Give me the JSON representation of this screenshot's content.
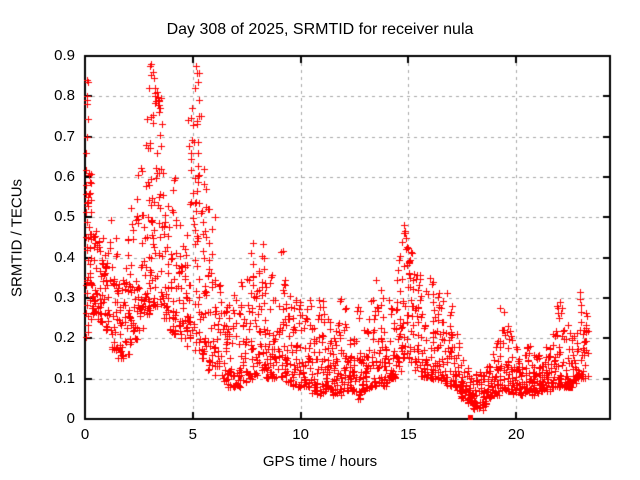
{
  "figure": {
    "background": "#ffffff"
  },
  "chart_data": {
    "type": "scatter",
    "title": "Day 308 of 2025, SRMTID for receiver nula",
    "xlabel": "GPS time / hours",
    "ylabel": "SRMTID / TECUs",
    "xlim": [
      0,
      24.35
    ],
    "ylim": [
      0,
      0.9
    ],
    "xticks": [
      0,
      5,
      10,
      15,
      20
    ],
    "xtick_labels": [
      "0",
      "5",
      "10",
      "15",
      "20"
    ],
    "yticks": [
      0,
      0.1,
      0.2,
      0.3,
      0.4,
      0.5,
      0.6,
      0.7,
      0.8,
      0.9
    ],
    "ytick_labels": [
      "0",
      "0.1",
      "0.2",
      "0.3",
      "0.4",
      "0.5",
      "0.6",
      "0.7",
      "0.8",
      "0.9"
    ],
    "grid": true,
    "legend": "none",
    "marker": "plus",
    "colors": {
      "points": "#ff0000",
      "grid": "#a8a8a8",
      "axis": "#000000",
      "text": "#000000"
    },
    "series": [
      {
        "name": "SRMTID",
        "marker": "plus"
      }
    ],
    "random_seed": 308,
    "low_point_square": {
      "x": 17.85,
      "y": 0.004,
      "marker": "filled-square"
    },
    "outlier_points": [
      [
        0.08,
        0.84
      ],
      [
        0.13,
        0.835
      ],
      [
        0.07,
        0.8
      ],
      [
        0.11,
        0.79
      ],
      [
        0.1,
        0.78
      ],
      [
        0.14,
        0.745
      ],
      [
        0.09,
        0.7
      ],
      [
        0.06,
        0.66
      ],
      [
        0.05,
        0.58
      ],
      [
        0.16,
        0.55
      ],
      [
        2.95,
        0.82
      ],
      [
        3.03,
        0.875
      ],
      [
        3.08,
        0.88
      ],
      [
        3.14,
        0.86
      ],
      [
        3.2,
        0.845
      ],
      [
        3.26,
        0.82
      ],
      [
        3.34,
        0.81
      ],
      [
        3.42,
        0.79
      ],
      [
        3.5,
        0.77
      ],
      [
        4.98,
        0.77
      ],
      [
        5.08,
        0.82
      ],
      [
        5.14,
        0.875
      ],
      [
        5.19,
        0.858
      ],
      [
        5.24,
        0.835
      ],
      [
        5.3,
        0.79
      ],
      [
        5.5,
        0.62
      ],
      [
        5.62,
        0.57
      ],
      [
        5.75,
        0.52
      ],
      [
        5.9,
        0.47
      ],
      [
        6.05,
        0.5
      ],
      [
        8.25,
        0.435
      ],
      [
        9.1,
        0.415
      ],
      [
        14.8,
        0.48
      ],
      [
        14.84,
        0.465
      ],
      [
        14.88,
        0.45
      ],
      [
        18.3,
        0.03
      ],
      [
        18.45,
        0.022
      ],
      [
        22.95,
        0.315
      ]
    ],
    "density_bands": {
      "format": [
        "x_start",
        "x_end",
        "y_min",
        "y_max",
        "count",
        "skew_toward_min"
      ],
      "bands": [
        [
          0.02,
          0.3,
          0.2,
          0.62,
          46,
          1.2
        ],
        [
          0.3,
          0.6,
          0.26,
          0.47,
          30,
          1.4
        ],
        [
          0.6,
          0.9,
          0.24,
          0.45,
          28,
          1.4
        ],
        [
          0.9,
          1.2,
          0.22,
          0.46,
          26,
          1.5
        ],
        [
          1.2,
          1.5,
          0.17,
          0.52,
          28,
          1.6
        ],
        [
          1.5,
          1.8,
          0.15,
          0.35,
          26,
          1.4
        ],
        [
          1.8,
          2.1,
          0.16,
          0.45,
          26,
          1.6
        ],
        [
          2.1,
          2.4,
          0.18,
          0.55,
          26,
          1.7
        ],
        [
          2.4,
          2.7,
          0.22,
          0.65,
          28,
          1.8
        ],
        [
          2.7,
          3.0,
          0.26,
          0.8,
          32,
          1.6
        ],
        [
          3.0,
          3.3,
          0.28,
          0.86,
          38,
          1.5
        ],
        [
          3.3,
          3.6,
          0.28,
          0.81,
          34,
          1.6
        ],
        [
          3.6,
          3.9,
          0.25,
          0.72,
          30,
          1.7
        ],
        [
          3.9,
          4.2,
          0.21,
          0.62,
          28,
          1.7
        ],
        [
          4.2,
          4.5,
          0.2,
          0.5,
          26,
          1.6
        ],
        [
          4.5,
          4.8,
          0.18,
          0.46,
          26,
          1.5
        ],
        [
          4.8,
          5.1,
          0.2,
          0.76,
          30,
          1.9
        ],
        [
          5.1,
          5.4,
          0.17,
          0.86,
          36,
          1.9
        ],
        [
          5.4,
          5.7,
          0.15,
          0.62,
          28,
          2.0
        ],
        [
          5.7,
          6.0,
          0.12,
          0.5,
          26,
          2.0
        ],
        [
          6.0,
          6.3,
          0.1,
          0.36,
          24,
          1.9
        ],
        [
          6.3,
          6.6,
          0.09,
          0.3,
          24,
          1.8
        ],
        [
          6.6,
          6.9,
          0.08,
          0.3,
          24,
          1.9
        ],
        [
          6.9,
          7.2,
          0.08,
          0.31,
          24,
          1.9
        ],
        [
          7.2,
          7.5,
          0.09,
          0.35,
          24,
          1.9
        ],
        [
          7.5,
          7.8,
          0.1,
          0.44,
          26,
          2.0
        ],
        [
          7.8,
          8.1,
          0.11,
          0.38,
          26,
          1.7
        ],
        [
          8.1,
          8.4,
          0.12,
          0.41,
          28,
          1.5
        ],
        [
          8.4,
          8.7,
          0.1,
          0.36,
          24,
          1.8
        ],
        [
          8.7,
          9.0,
          0.1,
          0.3,
          22,
          1.8
        ],
        [
          9.0,
          9.3,
          0.1,
          0.42,
          26,
          1.6
        ],
        [
          9.3,
          9.6,
          0.09,
          0.32,
          24,
          1.9
        ],
        [
          9.6,
          9.9,
          0.08,
          0.3,
          26,
          2.0
        ],
        [
          9.9,
          10.2,
          0.08,
          0.33,
          26,
          2.0
        ],
        [
          10.2,
          10.5,
          0.08,
          0.3,
          26,
          2.0
        ],
        [
          10.5,
          10.8,
          0.06,
          0.25,
          26,
          1.9
        ],
        [
          10.8,
          11.1,
          0.06,
          0.3,
          26,
          2.1
        ],
        [
          11.1,
          11.4,
          0.07,
          0.25,
          26,
          2.0
        ],
        [
          11.4,
          11.7,
          0.06,
          0.22,
          26,
          1.9
        ],
        [
          11.7,
          12.0,
          0.06,
          0.3,
          26,
          2.1
        ],
        [
          12.0,
          12.3,
          0.07,
          0.28,
          26,
          2.1
        ],
        [
          12.3,
          12.6,
          0.07,
          0.22,
          26,
          1.9
        ],
        [
          12.6,
          12.9,
          0.05,
          0.28,
          26,
          2.0
        ],
        [
          12.9,
          13.2,
          0.07,
          0.3,
          26,
          2.1
        ],
        [
          13.2,
          13.5,
          0.08,
          0.3,
          24,
          2.0
        ],
        [
          13.5,
          13.8,
          0.09,
          0.37,
          24,
          2.0
        ],
        [
          13.8,
          14.1,
          0.08,
          0.3,
          24,
          1.9
        ],
        [
          14.1,
          14.4,
          0.1,
          0.32,
          24,
          1.8
        ],
        [
          14.4,
          14.7,
          0.12,
          0.44,
          26,
          1.6
        ],
        [
          14.7,
          15.0,
          0.15,
          0.48,
          28,
          1.4
        ],
        [
          15.0,
          15.3,
          0.14,
          0.42,
          28,
          1.6
        ],
        [
          15.3,
          15.6,
          0.12,
          0.38,
          26,
          1.8
        ],
        [
          15.6,
          15.9,
          0.1,
          0.32,
          26,
          1.8
        ],
        [
          15.9,
          16.2,
          0.1,
          0.35,
          26,
          1.9
        ],
        [
          16.2,
          16.5,
          0.1,
          0.32,
          26,
          1.8
        ],
        [
          16.5,
          16.8,
          0.09,
          0.33,
          26,
          1.9
        ],
        [
          16.8,
          17.1,
          0.08,
          0.28,
          26,
          2.0
        ],
        [
          17.1,
          17.4,
          0.07,
          0.22,
          24,
          1.9
        ],
        [
          17.4,
          17.7,
          0.05,
          0.15,
          24,
          1.6
        ],
        [
          17.7,
          18.0,
          0.04,
          0.13,
          26,
          1.6
        ],
        [
          18.0,
          18.3,
          0.025,
          0.12,
          26,
          1.5
        ],
        [
          18.3,
          18.6,
          0.03,
          0.12,
          24,
          1.5
        ],
        [
          18.6,
          18.9,
          0.05,
          0.14,
          24,
          1.6
        ],
        [
          18.9,
          19.2,
          0.06,
          0.2,
          24,
          1.9
        ],
        [
          19.2,
          19.5,
          0.07,
          0.28,
          24,
          2.0
        ],
        [
          19.5,
          19.8,
          0.07,
          0.24,
          24,
          1.9
        ],
        [
          19.8,
          20.1,
          0.06,
          0.18,
          24,
          1.8
        ],
        [
          20.1,
          20.4,
          0.06,
          0.16,
          24,
          1.7
        ],
        [
          20.4,
          20.7,
          0.07,
          0.2,
          26,
          1.8
        ],
        [
          20.7,
          21.0,
          0.06,
          0.16,
          26,
          1.7
        ],
        [
          21.0,
          21.3,
          0.07,
          0.16,
          26,
          1.7
        ],
        [
          21.3,
          21.6,
          0.07,
          0.18,
          26,
          1.8
        ],
        [
          21.6,
          21.9,
          0.08,
          0.22,
          26,
          1.9
        ],
        [
          21.9,
          22.2,
          0.08,
          0.3,
          26,
          2.0
        ],
        [
          22.2,
          22.5,
          0.08,
          0.27,
          26,
          2.0
        ],
        [
          22.5,
          22.8,
          0.08,
          0.22,
          26,
          1.8
        ],
        [
          22.8,
          23.1,
          0.1,
          0.3,
          26,
          1.8
        ],
        [
          23.1,
          23.35,
          0.1,
          0.27,
          20,
          1.6
        ]
      ]
    }
  }
}
